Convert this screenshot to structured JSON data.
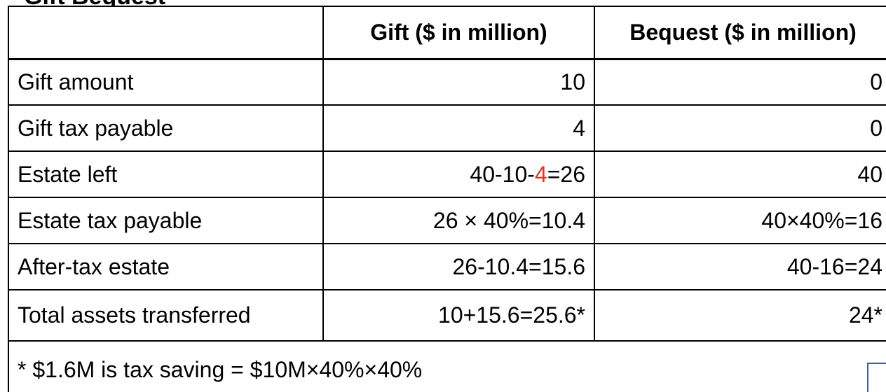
{
  "page_title_partial": "Gift Bequest",
  "table": {
    "headers": [
      "",
      "Gift ($ in million)",
      "Bequest ($ in million)"
    ],
    "rows": [
      {
        "label": "Gift amount",
        "gift": "10",
        "bequest": "0"
      },
      {
        "label": "Gift tax payable",
        "gift": "4",
        "bequest": "0"
      },
      {
        "label": "Estate left",
        "gift_prefix": "40-10-",
        "gift_highlight": "4",
        "gift_suffix": "=26",
        "bequest": "40"
      },
      {
        "label": "Estate tax payable",
        "gift": "26 × 40%=10.4",
        "bequest": "40×40%=16"
      },
      {
        "label": "After-tax estate",
        "gift": "26-10.4=15.6",
        "bequest": "40-16=24"
      },
      {
        "label": "Total assets transferred",
        "gift": "10+15.6=25.6*",
        "bequest": "24*"
      }
    ],
    "footnote": "* $1.6M is tax saving = $10M×40%×40%"
  },
  "colors": {
    "highlight": "#e8321e",
    "corner_box": "#3a5fae"
  }
}
